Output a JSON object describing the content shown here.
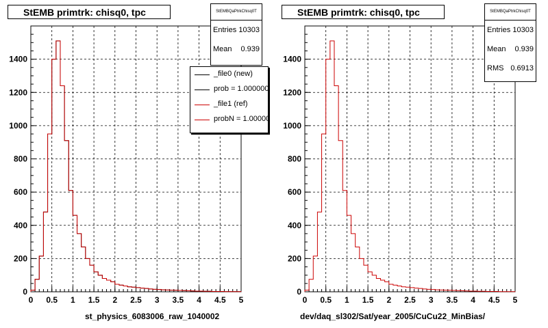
{
  "chart_data": [
    {
      "type": "histogram",
      "title": "StEMB primtrk: chisq0, tpc",
      "xlabel": "st_physics_6083006_raw_1040002",
      "xlim": [
        0,
        5
      ],
      "ylim": [
        0,
        1600
      ],
      "xticks": [
        "0",
        "0.5",
        "1",
        "1.5",
        "2",
        "2.5",
        "3",
        "3.5",
        "4",
        "4.5",
        "5"
      ],
      "yticks": [
        "0",
        "200",
        "400",
        "600",
        "800",
        "1000",
        "1200",
        "1400"
      ],
      "grid": true,
      "bin_width": 0.1,
      "stats": {
        "name": "StEMBQaPtrkChisq0T",
        "entries_label": "Entries",
        "entries": "10303",
        "mean_label": "Mean",
        "mean": "0.939"
      },
      "legend": {
        "placement": "top-right",
        "entries": [
          {
            "label": "_file0 (new)",
            "color": "#000000"
          },
          {
            "label": "prob = 1.000000",
            "color": "#000000"
          },
          {
            "label": "_file1 (ref)",
            "color": "#cc0000"
          },
          {
            "label": "probN = 1.000000",
            "color": "#cc0000"
          }
        ]
      },
      "series": [
        {
          "name": "_file0 (new)",
          "color": "#000000",
          "values": [
            10,
            75,
            215,
            480,
            950,
            1400,
            1510,
            1240,
            910,
            610,
            460,
            350,
            270,
            200,
            160,
            120,
            100,
            80,
            70,
            60,
            45,
            40,
            35,
            30,
            28,
            25,
            22,
            20,
            17,
            15,
            14,
            12,
            11,
            10,
            9,
            8,
            7,
            6,
            5,
            4,
            4,
            3,
            3,
            2,
            2,
            2,
            1,
            1,
            1,
            1
          ]
        },
        {
          "name": "_file1 (ref)",
          "color": "#cc0000",
          "values": [
            10,
            75,
            215,
            480,
            950,
            1400,
            1510,
            1240,
            910,
            610,
            460,
            350,
            270,
            200,
            160,
            120,
            100,
            80,
            70,
            60,
            45,
            40,
            35,
            30,
            28,
            25,
            22,
            20,
            17,
            15,
            14,
            12,
            11,
            10,
            9,
            8,
            7,
            6,
            5,
            4,
            4,
            3,
            3,
            2,
            2,
            2,
            1,
            1,
            1,
            1
          ]
        }
      ]
    },
    {
      "type": "histogram",
      "title": "StEMB primtrk: chisq0, tpc",
      "xlabel": "dev/daq_sl302/Sat/year_2005/CuCu22_MinBias/",
      "xlim": [
        0,
        5
      ],
      "ylim": [
        0,
        1600
      ],
      "xticks": [
        "0",
        "0.5",
        "1",
        "1.5",
        "2",
        "2.5",
        "3",
        "3.5",
        "4",
        "4.5",
        "5"
      ],
      "yticks": [
        "0",
        "200",
        "400",
        "600",
        "800",
        "1000",
        "1200",
        "1400"
      ],
      "grid": true,
      "bin_width": 0.1,
      "stats": {
        "name": "StEMBQaPtrkChisq0T",
        "entries_label": "Entries",
        "entries": "10303",
        "mean_label": "Mean",
        "mean": "0.939",
        "rms_label": "RMS",
        "rms": "0.6913"
      },
      "series": [
        {
          "color": "#cc0000",
          "values": [
            10,
            75,
            215,
            480,
            950,
            1400,
            1510,
            1240,
            910,
            610,
            460,
            350,
            270,
            200,
            160,
            120,
            100,
            80,
            70,
            60,
            45,
            40,
            35,
            30,
            28,
            25,
            22,
            20,
            17,
            15,
            14,
            12,
            11,
            10,
            9,
            8,
            7,
            6,
            5,
            4,
            4,
            3,
            3,
            2,
            2,
            2,
            1,
            1,
            1,
            1
          ]
        }
      ]
    }
  ]
}
